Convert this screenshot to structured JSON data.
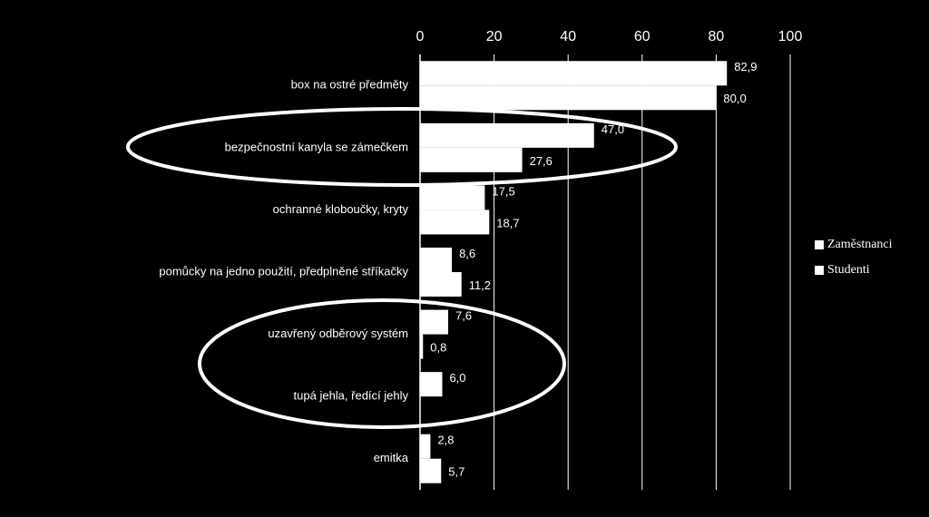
{
  "chart_data": {
    "type": "bar",
    "orientation": "horizontal",
    "categories": [
      "box na ostré předměty",
      "bezpečnostní kanyla se zámečkem",
      "ochranné kloboučky, kryty",
      "pomůcky na jedno použití, předplněné stříkačky",
      "uzavřený odběrový systém",
      "tupá jehla, ředící jehly",
      "emitka"
    ],
    "series": [
      {
        "name": "Zaměstnanci",
        "color": "#ffffff",
        "values": [
          82.9,
          47.0,
          17.5,
          8.6,
          7.6,
          6.0,
          2.8
        ],
        "value_labels": [
          "82,9",
          "47,0",
          "17,5",
          "8,6",
          "7,6",
          "6,0",
          "2,8"
        ]
      },
      {
        "name": "Studenti",
        "color": "#ffffff",
        "values": [
          80.0,
          27.6,
          18.7,
          11.2,
          0.8,
          null,
          5.7
        ],
        "value_labels": [
          "80,0",
          "27,6",
          "18,7",
          "11,2",
          "0,8",
          null,
          "5,7"
        ]
      }
    ],
    "xlim": [
      0,
      100
    ],
    "xticks": [
      0,
      20,
      40,
      60,
      80,
      100
    ],
    "grid": true,
    "legend": "right"
  }
}
